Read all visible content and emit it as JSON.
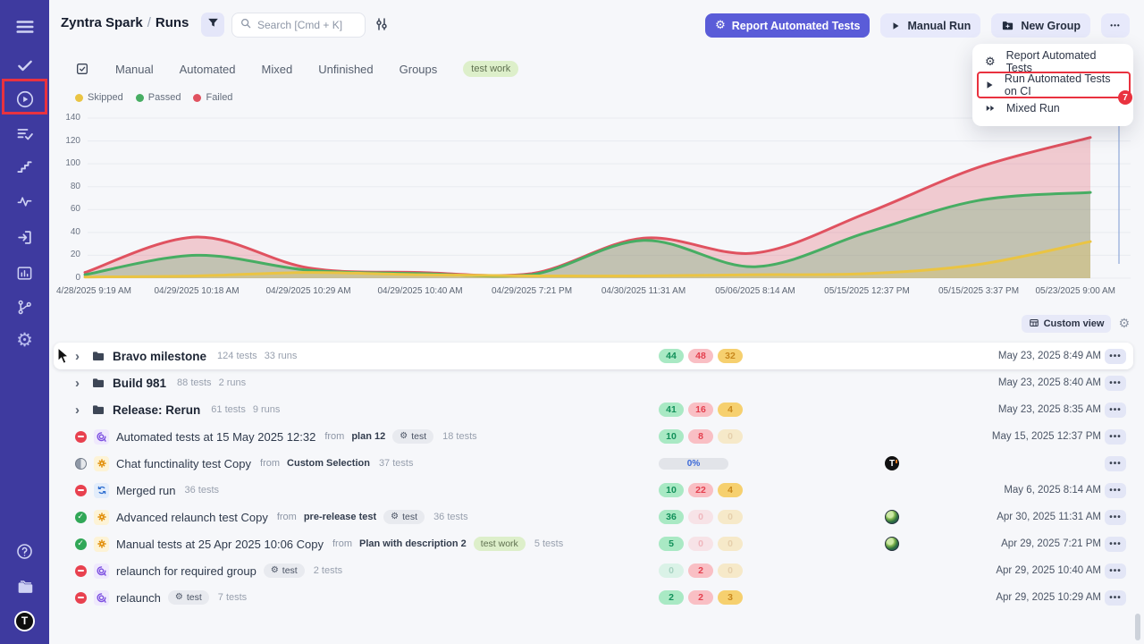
{
  "colors": {
    "sidebar_bg": "#3e3a9f",
    "accent": "#5a5cd8",
    "annotation": "#e9323f",
    "passed": "#31a757",
    "failed": "#e8414f",
    "skipped": "#eac443"
  },
  "sidebar": {
    "items": [
      {
        "icon": "menu-icon"
      },
      {
        "icon": "check-icon"
      },
      {
        "icon": "play-circle-icon",
        "annotated": true
      },
      {
        "icon": "list-check-icon"
      },
      {
        "icon": "steps-icon"
      },
      {
        "icon": "pulse-icon"
      },
      {
        "icon": "sign-in-icon"
      },
      {
        "icon": "bar-chart-icon"
      },
      {
        "icon": "branch-icon"
      },
      {
        "icon": "gear-icon"
      }
    ],
    "bottom_items": [
      {
        "icon": "help-icon"
      },
      {
        "icon": "folders-icon"
      },
      {
        "icon": "logo-avatar",
        "logo_text": "T"
      }
    ]
  },
  "header": {
    "breadcrumb": {
      "project": "Zyntra Spark",
      "separator": "/",
      "page": "Runs"
    },
    "search_placeholder": "Search [Cmd + K]",
    "buttons": [
      {
        "label": "Report Automated Tests",
        "icon": "gear-spark-icon",
        "style": "primary"
      },
      {
        "label": "Manual Run",
        "icon": "play-icon",
        "style": "soft"
      },
      {
        "label": "New Group",
        "icon": "folder-plus-icon",
        "style": "soft"
      }
    ],
    "more_button_icon": "ellipsis-icon"
  },
  "actions_menu": {
    "items": [
      {
        "label": "Report Automated Tests",
        "icon": "gear-spark-icon"
      },
      {
        "label": "Run Automated Tests on CI",
        "icon": "play-icon",
        "annotated": true
      },
      {
        "label": "Mixed Run",
        "icon": "fast-forward-icon"
      }
    ],
    "annotation_badge": "7"
  },
  "tabs": {
    "leading_icon": "checklist-icon",
    "items": [
      "Manual",
      "Automated",
      "Mixed",
      "Unfinished",
      "Groups"
    ],
    "badge": "test work"
  },
  "chart_data": {
    "type": "area",
    "title": "",
    "xlabel": "",
    "ylabel": "",
    "ylim": [
      0,
      140
    ],
    "yticks": [
      0,
      20,
      40,
      60,
      80,
      100,
      120,
      140
    ],
    "grid": true,
    "legend_position": "top-left",
    "x_labels": [
      "4/28/2025 9:19 AM",
      "04/29/2025 10:18 AM",
      "04/29/2025 10:29 AM",
      "04/29/2025 10:40 AM",
      "04/29/2025 7:21 PM",
      "04/30/2025 11:31 AM",
      "05/06/2025 8:14 AM",
      "05/15/2025 12:37 PM",
      "05/15/2025 3:37 PM",
      "05/23/2025 9:00 AM"
    ],
    "series": [
      {
        "name": "Skipped",
        "color": "#eac443",
        "values": [
          1,
          2,
          5,
          3,
          2,
          2,
          3,
          4,
          12,
          32
        ]
      },
      {
        "name": "Passed",
        "color": "#47ad63",
        "values": [
          3,
          20,
          7,
          4,
          3,
          33,
          10,
          40,
          68,
          75
        ]
      },
      {
        "name": "Failed",
        "color": "#e05260",
        "values": [
          5,
          36,
          9,
          5,
          4,
          35,
          22,
          57,
          97,
          123
        ]
      }
    ]
  },
  "toolbar": {
    "custom_view_label": "Custom view"
  },
  "runs_table": {
    "from_label": "from",
    "rows": [
      {
        "kind": "group",
        "title": "Bravo milestone",
        "tests": "124 tests",
        "runs": "33 runs",
        "hovered": true,
        "counts": [
          {
            "value": "44",
            "muted": false
          },
          {
            "value": "48",
            "muted": false
          },
          {
            "value": "32",
            "muted": false
          }
        ],
        "date": "May 23, 2025 8:49 AM"
      },
      {
        "kind": "group",
        "title": "Build 981",
        "tests": "88 tests",
        "runs": "2 runs",
        "counts": null,
        "date": "May 23, 2025 8:40 AM"
      },
      {
        "kind": "group",
        "title": "Release: Rerun",
        "tests": "61 tests",
        "runs": "9 runs",
        "counts": [
          {
            "value": "41",
            "muted": false
          },
          {
            "value": "16",
            "muted": false
          },
          {
            "value": "4",
            "muted": false
          }
        ],
        "date": "May 23, 2025 8:35 AM"
      },
      {
        "kind": "run",
        "status": "failed",
        "type": "automated",
        "title": "Automated tests at 15 May 2025 12:32",
        "from": "plan 12",
        "tag": "test",
        "tag_style": "gray",
        "tests": "18 tests",
        "counts": [
          {
            "value": "10",
            "muted": false
          },
          {
            "value": "8",
            "muted": false
          },
          {
            "value": "0",
            "muted": true
          }
        ],
        "date": "May 15, 2025 12:37 PM"
      },
      {
        "kind": "run",
        "status": "progress",
        "type": "manual",
        "title": "Chat functinality test Copy",
        "from": "Custom Selection",
        "tests": "37 tests",
        "progress": "0%",
        "avatar": "t-logo",
        "avatar_text": "T",
        "date": ""
      },
      {
        "kind": "run",
        "status": "failed",
        "type": "merged",
        "title": "Merged run",
        "tests": "36 tests",
        "counts": [
          {
            "value": "10",
            "muted": false
          },
          {
            "value": "22",
            "muted": false
          },
          {
            "value": "4",
            "muted": false
          }
        ],
        "date": "May 6, 2025 8:14 AM"
      },
      {
        "kind": "run",
        "status": "passed",
        "type": "manual",
        "title": "Advanced relaunch test Copy",
        "from": "pre-release test",
        "tag": "test",
        "tag_style": "gray",
        "tests": "36 tests",
        "counts": [
          {
            "value": "36",
            "muted": false
          },
          {
            "value": "0",
            "muted": true
          },
          {
            "value": "0",
            "muted": true
          }
        ],
        "avatar": "earth",
        "date": "Apr 30, 2025 11:31 AM"
      },
      {
        "kind": "run",
        "status": "passed",
        "type": "manual",
        "title": "Manual tests at 25 Apr 2025 10:06 Copy",
        "from": "Plan with description 2",
        "tag": "test work",
        "tag_style": "green",
        "tests": "5 tests",
        "counts": [
          {
            "value": "5",
            "muted": false
          },
          {
            "value": "0",
            "muted": true
          },
          {
            "value": "0",
            "muted": true
          }
        ],
        "avatar": "earth",
        "date": "Apr 29, 2025 7:21 PM"
      },
      {
        "kind": "run",
        "status": "failed",
        "type": "automated",
        "title": "relaunch for required group",
        "tag": "test",
        "tag_style": "gray",
        "tests": "2 tests",
        "counts": [
          {
            "value": "0",
            "muted": true
          },
          {
            "value": "2",
            "muted": false
          },
          {
            "value": "0",
            "muted": true
          }
        ],
        "date": "Apr 29, 2025 10:40 AM"
      },
      {
        "kind": "run",
        "status": "failed",
        "type": "automated",
        "title": "relaunch",
        "tag": "test",
        "tag_style": "gray",
        "tests": "7 tests",
        "counts": [
          {
            "value": "2",
            "muted": false
          },
          {
            "value": "2",
            "muted": false
          },
          {
            "value": "3",
            "muted": false
          }
        ],
        "date": "Apr 29, 2025 10:29 AM"
      }
    ]
  }
}
